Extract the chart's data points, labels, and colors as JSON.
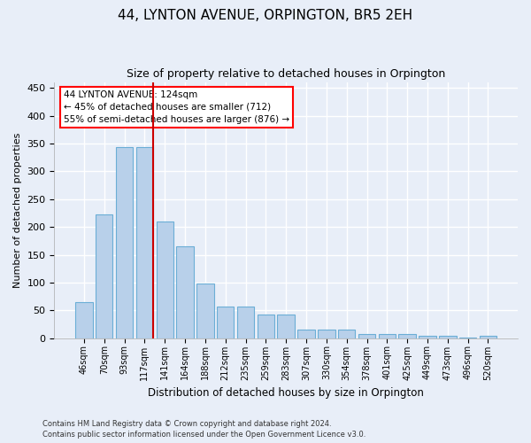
{
  "title": "44, LYNTON AVENUE, ORPINGTON, BR5 2EH",
  "subtitle": "Size of property relative to detached houses in Orpington",
  "xlabel": "Distribution of detached houses by size in Orpington",
  "ylabel": "Number of detached properties",
  "bar_labels": [
    "46sqm",
    "70sqm",
    "93sqm",
    "117sqm",
    "141sqm",
    "164sqm",
    "188sqm",
    "212sqm",
    "235sqm",
    "259sqm",
    "283sqm",
    "307sqm",
    "330sqm",
    "354sqm",
    "378sqm",
    "401sqm",
    "425sqm",
    "449sqm",
    "473sqm",
    "496sqm",
    "520sqm"
  ],
  "bar_values": [
    65,
    222,
    343,
    343,
    210,
    165,
    98,
    57,
    57,
    42,
    42,
    15,
    15,
    15,
    8,
    7,
    7,
    5,
    5,
    1,
    4
  ],
  "bar_color": "#b8d0ea",
  "bar_edge_color": "#6baed6",
  "annotation_text_line1": "44 LYNTON AVENUE: 124sqm",
  "annotation_text_line2": "← 45% of detached houses are smaller (712)",
  "annotation_text_line3": "55% of semi-detached houses are larger (876) →",
  "vline_color": "#cc0000",
  "ylim": [
    0,
    460
  ],
  "yticks": [
    0,
    50,
    100,
    150,
    200,
    250,
    300,
    350,
    400,
    450
  ],
  "footer_line1": "Contains HM Land Registry data © Crown copyright and database right 2024.",
  "footer_line2": "Contains public sector information licensed under the Open Government Licence v3.0.",
  "bg_color": "#e8eef8",
  "plot_bg_color": "#e8eef8",
  "grid_color": "#ffffff"
}
